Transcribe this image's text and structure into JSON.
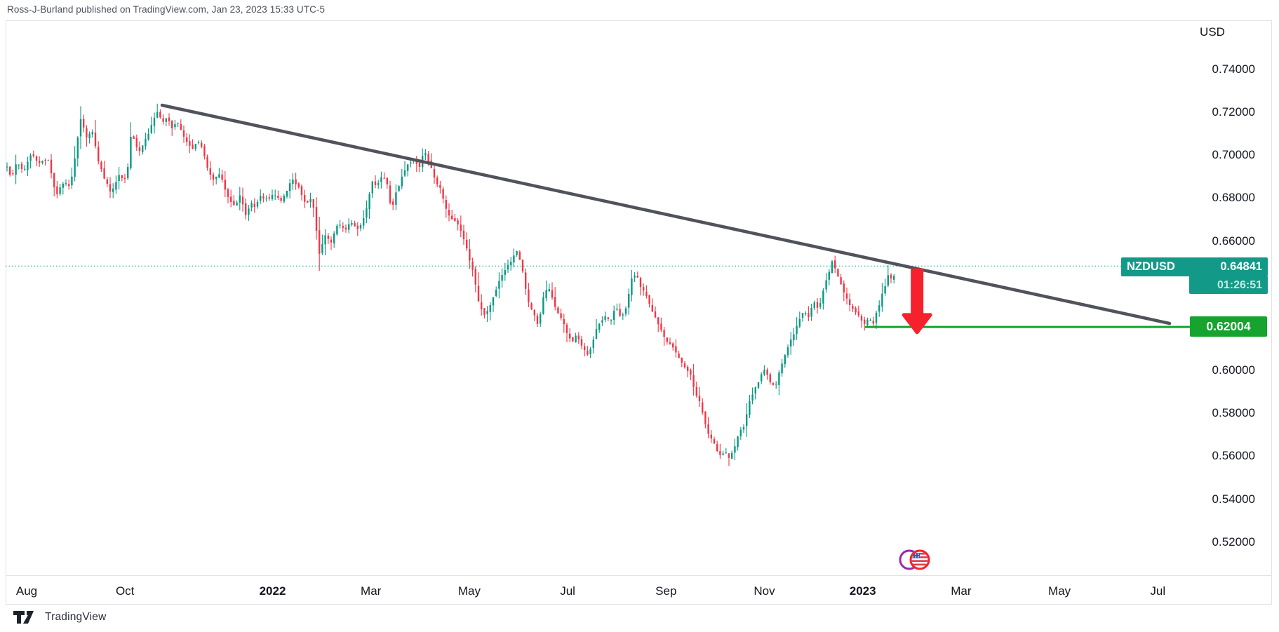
{
  "header": {
    "attribution": "Ross-J-Burland published on TradingView.com, Jan 23, 2023 15:33 UTC-5"
  },
  "price_axis": {
    "currency": "USD",
    "ticks": [
      {
        "label": "0.74000",
        "value": 0.74
      },
      {
        "label": "0.72000",
        "value": 0.72
      },
      {
        "label": "0.70000",
        "value": 0.7
      },
      {
        "label": "0.68000",
        "value": 0.68
      },
      {
        "label": "0.66000",
        "value": 0.66
      },
      {
        "label": "0.60000",
        "value": 0.6
      },
      {
        "label": "0.58000",
        "value": 0.58
      },
      {
        "label": "0.56000",
        "value": 0.56
      },
      {
        "label": "0.54000",
        "value": 0.54
      },
      {
        "label": "0.52000",
        "value": 0.52
      }
    ]
  },
  "time_axis": {
    "labels": [
      {
        "label": "Aug",
        "month_index": 0,
        "bold": false
      },
      {
        "label": "Oct",
        "month_index": 2,
        "bold": false
      },
      {
        "label": "2022",
        "month_index": 5,
        "bold": true
      },
      {
        "label": "Mar",
        "month_index": 7,
        "bold": false
      },
      {
        "label": "May",
        "month_index": 9,
        "bold": false
      },
      {
        "label": "Jul",
        "month_index": 11,
        "bold": false
      },
      {
        "label": "Sep",
        "month_index": 13,
        "bold": false
      },
      {
        "label": "Nov",
        "month_index": 15,
        "bold": false
      },
      {
        "label": "2023",
        "month_index": 17,
        "bold": true
      },
      {
        "label": "Mar",
        "month_index": 19,
        "bold": false
      },
      {
        "label": "May",
        "month_index": 21,
        "bold": false
      },
      {
        "label": "Jul",
        "month_index": 23,
        "bold": false
      }
    ]
  },
  "labels": {
    "symbol": "NZDUSD",
    "last_price": "0.64841",
    "countdown": "01:26:51",
    "support_price": "0.62004"
  },
  "footer": {
    "brand": "TradingView"
  },
  "colors": {
    "candle_up": "#089981",
    "candle_down": "#f23645",
    "flag_teal": "#139987",
    "support_green": "#16a32e",
    "trendline_gray": "#50535b",
    "arrow_red": "#f5222d",
    "frame_gray": "#e0e3eb",
    "axis_text": "#131722"
  },
  "chart_data": {
    "type": "candlestick",
    "symbol": "NZDUSD",
    "quote_currency": "USD",
    "title": "NZDUSD daily with descending trendline resistance and 0.62004 support",
    "x_range": [
      "Jul 2021",
      "Jul 2023"
    ],
    "ylim": [
      0.505,
      0.765
    ],
    "grid": false,
    "legend": "none",
    "current_price": 0.64841,
    "support_level": 0.62004,
    "countdown_to_bar_close": "01:26:51",
    "observed_extremes": {
      "high": {
        "price": 0.7219,
        "when": "Oct 2021"
      },
      "low": {
        "price": 0.556,
        "when": "Oct 2022"
      }
    },
    "annotations": {
      "trendline": {
        "t1": 0.1743,
        "p1": 0.7232,
        "t2": 1.3068,
        "p2": 0.6217,
        "style": "solid",
        "desc": "descending resistance from Oct 2021 high"
      },
      "current_price_line": {
        "price": 0.64841,
        "style": "dotted"
      },
      "support_line": {
        "price": 0.62004,
        "t1": 0.9645,
        "t2": 1.4164,
        "style": "solid"
      },
      "down_arrow": {
        "t": 1.023,
        "from_price": 0.6465,
        "to_price": 0.6195
      },
      "event_marker": {
        "t": 1.0255,
        "type": "us-economic-event-flag"
      }
    },
    "price_path": [
      [
        0.0,
        0.6945
      ],
      [
        0.0047,
        0.689
      ],
      [
        0.011,
        0.6975
      ],
      [
        0.0174,
        0.6922
      ],
      [
        0.0276,
        0.7005
      ],
      [
        0.0379,
        0.696
      ],
      [
        0.0457,
        0.6995
      ],
      [
        0.0552,
        0.681
      ],
      [
        0.0631,
        0.6875
      ],
      [
        0.071,
        0.685
      ],
      [
        0.0828,
        0.7168
      ],
      [
        0.0899,
        0.708
      ],
      [
        0.0954,
        0.7115
      ],
      [
        0.1041,
        0.695
      ],
      [
        0.1167,
        0.6822
      ],
      [
        0.1262,
        0.691
      ],
      [
        0.1341,
        0.688
      ],
      [
        0.1396,
        0.711
      ],
      [
        0.1443,
        0.706
      ],
      [
        0.1483,
        0.701
      ],
      [
        0.1585,
        0.71
      ],
      [
        0.1696,
        0.721
      ],
      [
        0.1751,
        0.715
      ],
      [
        0.1798,
        0.718
      ],
      [
        0.1853,
        0.712
      ],
      [
        0.1909,
        0.7155
      ],
      [
        0.1987,
        0.708
      ],
      [
        0.2074,
        0.703
      ],
      [
        0.2169,
        0.7065
      ],
      [
        0.2248,
        0.695
      ],
      [
        0.2303,
        0.688
      ],
      [
        0.2382,
        0.692
      ],
      [
        0.2461,
        0.683
      ],
      [
        0.2547,
        0.676
      ],
      [
        0.2618,
        0.681
      ],
      [
        0.2681,
        0.6722
      ],
      [
        0.2737,
        0.678
      ],
      [
        0.2784,
        0.6752
      ],
      [
        0.2855,
        0.681
      ],
      [
        0.2918,
        0.679
      ],
      [
        0.2997,
        0.682
      ],
      [
        0.3076,
        0.6788
      ],
      [
        0.3147,
        0.684
      ],
      [
        0.321,
        0.6884
      ],
      [
        0.3289,
        0.684
      ],
      [
        0.3368,
        0.677
      ],
      [
        0.3431,
        0.68
      ],
      [
        0.351,
        0.6538
      ],
      [
        0.3581,
        0.663
      ],
      [
        0.3644,
        0.66
      ],
      [
        0.3722,
        0.668
      ],
      [
        0.3801,
        0.6645
      ],
      [
        0.3864,
        0.669
      ],
      [
        0.3943,
        0.666
      ],
      [
        0.4022,
        0.6712
      ],
      [
        0.4101,
        0.688
      ],
      [
        0.4156,
        0.686
      ],
      [
        0.4219,
        0.691
      ],
      [
        0.4274,
        0.687
      ],
      [
        0.4322,
        0.6742
      ],
      [
        0.4377,
        0.683
      ],
      [
        0.444,
        0.69
      ],
      [
        0.4495,
        0.695
      ],
      [
        0.4574,
        0.698
      ],
      [
        0.4637,
        0.6945
      ],
      [
        0.4685,
        0.7025
      ],
      [
        0.4748,
        0.6965
      ],
      [
        0.4811,
        0.689
      ],
      [
        0.4874,
        0.684
      ],
      [
        0.4937,
        0.675
      ],
      [
        0.5,
        0.67
      ],
      [
        0.5063,
        0.668
      ],
      [
        0.5126,
        0.662
      ],
      [
        0.5189,
        0.653
      ],
      [
        0.5252,
        0.644
      ],
      [
        0.5308,
        0.63
      ],
      [
        0.5363,
        0.6255
      ],
      [
        0.5418,
        0.628
      ],
      [
        0.5481,
        0.635
      ],
      [
        0.5544,
        0.643
      ],
      [
        0.5615,
        0.647
      ],
      [
        0.5678,
        0.652
      ],
      [
        0.5733,
        0.656
      ],
      [
        0.5789,
        0.648
      ],
      [
        0.5852,
        0.633
      ],
      [
        0.5915,
        0.627
      ],
      [
        0.597,
        0.6212
      ],
      [
        0.6025,
        0.633
      ],
      [
        0.608,
        0.639
      ],
      [
        0.6151,
        0.631
      ],
      [
        0.6214,
        0.625
      ],
      [
        0.6278,
        0.619
      ],
      [
        0.6341,
        0.613
      ],
      [
        0.6404,
        0.6165
      ],
      [
        0.6467,
        0.611
      ],
      [
        0.653,
        0.6067
      ],
      [
        0.6593,
        0.615
      ],
      [
        0.6656,
        0.622
      ],
      [
        0.6719,
        0.625
      ],
      [
        0.6782,
        0.623
      ],
      [
        0.6845,
        0.629
      ],
      [
        0.6908,
        0.624
      ],
      [
        0.6963,
        0.63
      ],
      [
        0.7019,
        0.642
      ],
      [
        0.7074,
        0.6455
      ],
      [
        0.7129,
        0.638
      ],
      [
        0.7184,
        0.635
      ],
      [
        0.7239,
        0.628
      ],
      [
        0.7295,
        0.624
      ],
      [
        0.735,
        0.619
      ],
      [
        0.7405,
        0.614
      ],
      [
        0.746,
        0.612
      ],
      [
        0.7516,
        0.608
      ],
      [
        0.7571,
        0.605
      ],
      [
        0.7626,
        0.601
      ],
      [
        0.7681,
        0.598
      ],
      [
        0.7737,
        0.59
      ],
      [
        0.7792,
        0.584
      ],
      [
        0.7839,
        0.576
      ],
      [
        0.7886,
        0.57
      ],
      [
        0.7934,
        0.5665
      ],
      [
        0.7981,
        0.563
      ],
      [
        0.8028,
        0.56
      ],
      [
        0.8076,
        0.562
      ],
      [
        0.8123,
        0.559
      ],
      [
        0.817,
        0.564
      ],
      [
        0.8225,
        0.57
      ],
      [
        0.828,
        0.574
      ],
      [
        0.8344,
        0.585
      ],
      [
        0.8407,
        0.591
      ],
      [
        0.8462,
        0.596
      ],
      [
        0.8517,
        0.601
      ],
      [
        0.8572,
        0.595
      ],
      [
        0.8628,
        0.592
      ],
      [
        0.8683,
        0.599
      ],
      [
        0.8738,
        0.606
      ],
      [
        0.8793,
        0.612
      ],
      [
        0.8849,
        0.617
      ],
      [
        0.8904,
        0.623
      ],
      [
        0.8959,
        0.628
      ],
      [
        0.9014,
        0.625
      ],
      [
        0.907,
        0.632
      ],
      [
        0.9125,
        0.628
      ],
      [
        0.918,
        0.638
      ],
      [
        0.9235,
        0.645
      ],
      [
        0.9274,
        0.6505
      ],
      [
        0.9322,
        0.645
      ],
      [
        0.9369,
        0.64
      ],
      [
        0.9424,
        0.634
      ],
      [
        0.9479,
        0.63
      ],
      [
        0.9535,
        0.627
      ],
      [
        0.959,
        0.624
      ],
      [
        0.9645,
        0.621
      ],
      [
        0.9692,
        0.625
      ],
      [
        0.9724,
        0.6195
      ],
      [
        0.9771,
        0.627
      ],
      [
        0.9818,
        0.632
      ],
      [
        0.9866,
        0.639
      ],
      [
        0.9913,
        0.645
      ],
      [
        0.9953,
        0.642
      ],
      [
        1.0,
        0.64841
      ]
    ]
  }
}
